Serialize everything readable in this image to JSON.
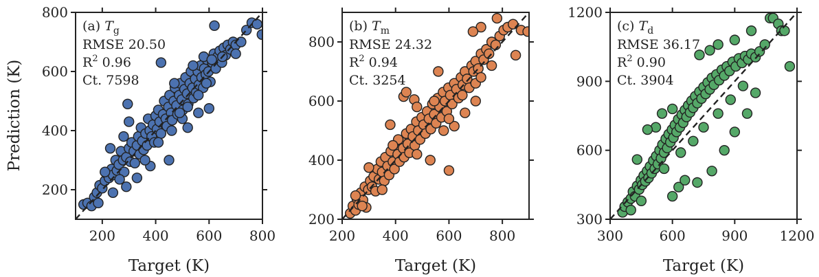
{
  "y_axis_label": "Prediction (K)",
  "chart_data": [
    {
      "type": "scatter",
      "panel": "(a)",
      "label": "T",
      "label_sub": "g",
      "stats": [
        {
          "key": "RMSE",
          "value": "20.50"
        },
        {
          "key": "R",
          "sup": "2",
          "value": "0.96"
        },
        {
          "key": "Ct.",
          "value": "7598"
        }
      ],
      "xlabel": "Target (K)",
      "xlim": [
        100,
        800
      ],
      "ylim": [
        100,
        800
      ],
      "xticks": [
        200,
        400,
        600,
        800
      ],
      "yticks": [
        200,
        400,
        600,
        800
      ],
      "color": "#4c72b0",
      "points": [
        [
          130,
          150
        ],
        [
          145,
          155
        ],
        [
          160,
          145
        ],
        [
          170,
          175
        ],
        [
          180,
          190
        ],
        [
          190,
          215
        ],
        [
          200,
          205
        ],
        [
          210,
          230
        ],
        [
          215,
          255
        ],
        [
          225,
          240
        ],
        [
          235,
          270
        ],
        [
          240,
          250
        ],
        [
          250,
          300
        ],
        [
          255,
          265
        ],
        [
          262,
          285
        ],
        [
          270,
          330
        ],
        [
          278,
          300
        ],
        [
          282,
          260
        ],
        [
          290,
          310
        ],
        [
          295,
          490
        ],
        [
          300,
          340
        ],
        [
          305,
          295
        ],
        [
          310,
          360
        ],
        [
          318,
          330
        ],
        [
          322,
          290
        ],
        [
          330,
          350
        ],
        [
          335,
          380
        ],
        [
          340,
          320
        ],
        [
          345,
          410
        ],
        [
          350,
          365
        ],
        [
          355,
          335
        ],
        [
          362,
          390
        ],
        [
          368,
          350
        ],
        [
          372,
          440
        ],
        [
          378,
          400
        ],
        [
          385,
          380
        ],
        [
          390,
          420
        ],
        [
          395,
          360
        ],
        [
          400,
          450
        ],
        [
          405,
          405
        ],
        [
          410,
          470
        ],
        [
          415,
          430
        ],
        [
          420,
          390
        ],
        [
          428,
          455
        ],
        [
          432,
          500
        ],
        [
          438,
          440
        ],
        [
          442,
          415
        ],
        [
          448,
          480
        ],
        [
          452,
          520
        ],
        [
          458,
          460
        ],
        [
          462,
          435
        ],
        [
          468,
          500
        ],
        [
          472,
          545
        ],
        [
          478,
          485
        ],
        [
          482,
          455
        ],
        [
          488,
          520
        ],
        [
          492,
          560
        ],
        [
          498,
          505
        ],
        [
          502,
          470
        ],
        [
          508,
          540
        ],
        [
          512,
          580
        ],
        [
          518,
          525
        ],
        [
          522,
          490
        ],
        [
          528,
          560
        ],
        [
          532,
          600
        ],
        [
          538,
          545
        ],
        [
          542,
          510
        ],
        [
          548,
          575
        ],
        [
          552,
          530
        ],
        [
          558,
          600
        ],
        [
          562,
          555
        ],
        [
          568,
          620
        ],
        [
          572,
          580
        ],
        [
          578,
          545
        ],
        [
          582,
          610
        ],
        [
          588,
          590
        ],
        [
          592,
          640
        ],
        [
          598,
          600
        ],
        [
          605,
          565
        ],
        [
          612,
          630
        ],
        [
          618,
          660
        ],
        [
          625,
          610
        ],
        [
          632,
          650
        ],
        [
          640,
          670
        ],
        [
          648,
          630
        ],
        [
          655,
          680
        ],
        [
          662,
          655
        ],
        [
          670,
          690
        ],
        [
          680,
          675
        ],
        [
          690,
          700
        ],
        [
          700,
          690
        ],
        [
          720,
          700
        ],
        [
          740,
          740
        ],
        [
          760,
          765
        ],
        [
          780,
          760
        ],
        [
          798,
          725
        ],
        [
          420,
          630
        ],
        [
          280,
          380
        ],
        [
          300,
          430
        ],
        [
          600,
          475
        ],
        [
          450,
          300
        ],
        [
          380,
          280
        ],
        [
          230,
          340
        ],
        [
          520,
          410
        ],
        [
          470,
          560
        ],
        [
          560,
          460
        ],
        [
          240,
          190
        ],
        [
          265,
          235
        ],
        [
          185,
          155
        ],
        [
          210,
          260
        ],
        [
          290,
          210
        ],
        [
          330,
          240
        ],
        [
          500,
          440
        ],
        [
          540,
          620
        ],
        [
          580,
          650
        ],
        [
          610,
          640
        ],
        [
          620,
          755
        ],
        [
          560,
          520
        ],
        [
          590,
          560
        ],
        [
          650,
          650
        ],
        [
          700,
          660
        ],
        [
          360,
          300
        ],
        [
          410,
          360
        ],
        [
          460,
          400
        ],
        [
          490,
          460
        ],
        [
          520,
          480
        ]
      ]
    },
    {
      "type": "scatter",
      "panel": "(b)",
      "label": "T",
      "label_sub": "m",
      "stats": [
        {
          "key": "RMSE",
          "value": "24.32"
        },
        {
          "key": "R",
          "sup": "2",
          "value": "0.94"
        },
        {
          "key": "Ct.",
          "value": "3254"
        }
      ],
      "xlabel": "Target (K)",
      "xlim": [
        200,
        900
      ],
      "ylim": [
        200,
        900
      ],
      "xticks": [
        200,
        400,
        600,
        800
      ],
      "yticks": [
        200,
        400,
        600,
        800
      ],
      "color": "#dd8452",
      "points": [
        [
          230,
          220
        ],
        [
          240,
          245
        ],
        [
          250,
          230
        ],
        [
          255,
          270
        ],
        [
          262,
          250
        ],
        [
          270,
          290
        ],
        [
          278,
          265
        ],
        [
          285,
          310
        ],
        [
          290,
          240
        ],
        [
          298,
          300
        ],
        [
          305,
          330
        ],
        [
          312,
          310
        ],
        [
          318,
          345
        ],
        [
          325,
          295
        ],
        [
          332,
          370
        ],
        [
          338,
          335
        ],
        [
          345,
          395
        ],
        [
          350,
          360
        ],
        [
          358,
          330
        ],
        [
          362,
          410
        ],
        [
          370,
          380
        ],
        [
          376,
          350
        ],
        [
          382,
          430
        ],
        [
          390,
          395
        ],
        [
          396,
          370
        ],
        [
          402,
          450
        ],
        [
          408,
          420
        ],
        [
          415,
          395
        ],
        [
          420,
          465
        ],
        [
          428,
          440
        ],
        [
          432,
          410
        ],
        [
          440,
          490
        ],
        [
          446,
          455
        ],
        [
          452,
          425
        ],
        [
          458,
          505
        ],
        [
          465,
          480
        ],
        [
          472,
          450
        ],
        [
          478,
          530
        ],
        [
          485,
          500
        ],
        [
          492,
          470
        ],
        [
          498,
          545
        ],
        [
          505,
          520
        ],
        [
          512,
          490
        ],
        [
          518,
          565
        ],
        [
          525,
          540
        ],
        [
          532,
          505
        ],
        [
          538,
          590
        ],
        [
          545,
          555
        ],
        [
          552,
          525
        ],
        [
          558,
          610
        ],
        [
          565,
          580
        ],
        [
          572,
          545
        ],
        [
          578,
          630
        ],
        [
          585,
          600
        ],
        [
          592,
          565
        ],
        [
          598,
          645
        ],
        [
          605,
          620
        ],
        [
          612,
          590
        ],
        [
          620,
          660
        ],
        [
          628,
          640
        ],
        [
          636,
          610
        ],
        [
          645,
          680
        ],
        [
          652,
          655
        ],
        [
          660,
          700
        ],
        [
          668,
          675
        ],
        [
          676,
          645
        ],
        [
          685,
          720
        ],
        [
          692,
          700
        ],
        [
          700,
          735
        ],
        [
          710,
          710
        ],
        [
          720,
          760
        ],
        [
          730,
          740
        ],
        [
          740,
          775
        ],
        [
          750,
          760
        ],
        [
          760,
          800
        ],
        [
          775,
          790
        ],
        [
          790,
          820
        ],
        [
          805,
          840
        ],
        [
          820,
          850
        ],
        [
          840,
          860
        ],
        [
          870,
          840
        ],
        [
          895,
          835
        ],
        [
          720,
          850
        ],
        [
          690,
          835
        ],
        [
          780,
          880
        ],
        [
          850,
          755
        ],
        [
          430,
          615
        ],
        [
          440,
          630
        ],
        [
          600,
          365
        ],
        [
          530,
          400
        ],
        [
          380,
          520
        ],
        [
          300,
          375
        ],
        [
          620,
          515
        ],
        [
          470,
          605
        ],
        [
          560,
          700
        ],
        [
          700,
          600
        ],
        [
          250,
          280
        ],
        [
          275,
          245
        ],
        [
          350,
          300
        ],
        [
          410,
          470
        ],
        [
          480,
          420
        ],
        [
          545,
          600
        ],
        [
          600,
          540
        ],
        [
          650,
          620
        ],
        [
          700,
          660
        ],
        [
          760,
          720
        ],
        [
          720,
          680
        ],
        [
          660,
          560
        ],
        [
          580,
          500
        ],
        [
          480,
          580
        ],
        [
          390,
          450
        ]
      ]
    },
    {
      "type": "scatter",
      "panel": "(c)",
      "label": "T",
      "label_sub": "d",
      "stats": [
        {
          "key": "RMSE",
          "value": "36.17"
        },
        {
          "key": "R",
          "sup": "2",
          "value": "0.90"
        },
        {
          "key": "Ct.",
          "value": "3904"
        }
      ],
      "xlabel": "Target (K)",
      "xlim": [
        300,
        1200
      ],
      "ylim": [
        300,
        1200
      ],
      "xticks": [
        300,
        600,
        900,
        1200
      ],
      "yticks": [
        300,
        600,
        900,
        1200
      ],
      "color": "#55a868",
      "points": [
        [
          360,
          330
        ],
        [
          370,
          355
        ],
        [
          385,
          375
        ],
        [
          400,
          390
        ],
        [
          410,
          420
        ],
        [
          420,
          400
        ],
        [
          430,
          445
        ],
        [
          440,
          430
        ],
        [
          448,
          470
        ],
        [
          455,
          450
        ],
        [
          462,
          490
        ],
        [
          470,
          465
        ],
        [
          478,
          510
        ],
        [
          485,
          480
        ],
        [
          492,
          530
        ],
        [
          500,
          500
        ],
        [
          508,
          555
        ],
        [
          515,
          520
        ],
        [
          522,
          575
        ],
        [
          530,
          540
        ],
        [
          538,
          600
        ],
        [
          545,
          565
        ],
        [
          552,
          625
        ],
        [
          560,
          590
        ],
        [
          568,
          650
        ],
        [
          575,
          610
        ],
        [
          582,
          670
        ],
        [
          590,
          635
        ],
        [
          598,
          690
        ],
        [
          605,
          655
        ],
        [
          612,
          710
        ],
        [
          620,
          680
        ],
        [
          628,
          735
        ],
        [
          636,
          700
        ],
        [
          645,
          755
        ],
        [
          652,
          720
        ],
        [
          660,
          775
        ],
        [
          668,
          745
        ],
        [
          676,
          795
        ],
        [
          685,
          765
        ],
        [
          692,
          815
        ],
        [
          700,
          785
        ],
        [
          710,
          835
        ],
        [
          720,
          805
        ],
        [
          730,
          855
        ],
        [
          740,
          825
        ],
        [
          750,
          875
        ],
        [
          760,
          845
        ],
        [
          770,
          895
        ],
        [
          780,
          865
        ],
        [
          790,
          915
        ],
        [
          800,
          885
        ],
        [
          812,
          930
        ],
        [
          825,
          905
        ],
        [
          838,
          950
        ],
        [
          850,
          925
        ],
        [
          862,
          965
        ],
        [
          875,
          945
        ],
        [
          890,
          985
        ],
        [
          905,
          965
        ],
        [
          920,
          1000
        ],
        [
          935,
          980
        ],
        [
          950,
          1010
        ],
        [
          965,
          995
        ],
        [
          980,
          1020
        ],
        [
          1000,
          1005
        ],
        [
          1020,
          1030
        ],
        [
          1045,
          1060
        ],
        [
          1070,
          1175
        ],
        [
          1085,
          1175
        ],
        [
          1110,
          1150
        ],
        [
          1125,
          1120
        ],
        [
          1140,
          1120
        ],
        [
          1165,
          965
        ],
        [
          980,
          1120
        ],
        [
          900,
          1080
        ],
        [
          820,
          1060
        ],
        [
          780,
          1035
        ],
        [
          730,
          1015
        ],
        [
          600,
          780
        ],
        [
          550,
          760
        ],
        [
          520,
          700
        ],
        [
          480,
          690
        ],
        [
          430,
          560
        ],
        [
          630,
          440
        ],
        [
          720,
          460
        ],
        [
          790,
          510
        ],
        [
          600,
          400
        ],
        [
          660,
          470
        ],
        [
          850,
          600
        ],
        [
          900,
          680
        ],
        [
          960,
          760
        ],
        [
          1000,
          850
        ],
        [
          700,
          640
        ],
        [
          750,
          700
        ],
        [
          820,
          760
        ],
        [
          880,
          820
        ],
        [
          940,
          880
        ],
        [
          560,
          520
        ],
        [
          640,
          590
        ],
        [
          450,
          380
        ],
        [
          400,
          340
        ]
      ]
    }
  ]
}
